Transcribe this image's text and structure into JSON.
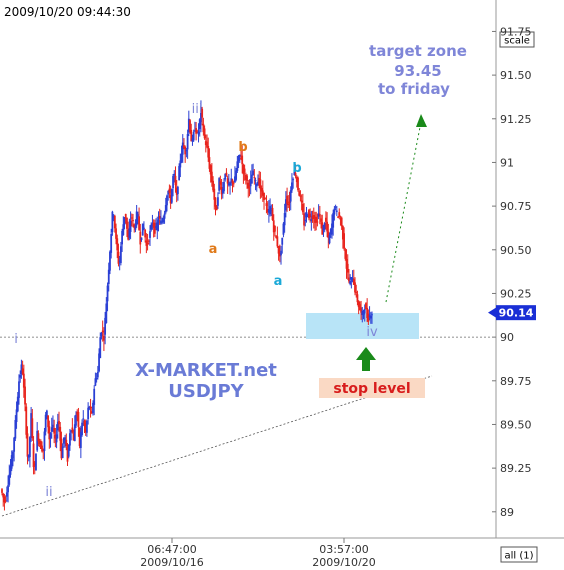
{
  "chart_data": {
    "type": "candlestick",
    "timestamp": "2009/10/20 09:44:30",
    "y_ticks": [
      "91.75",
      "91.50",
      "91.25",
      "91",
      "90.75",
      "90.50",
      "90.25",
      "90",
      "89.75",
      "89.50",
      "89.25",
      "89"
    ],
    "ylim": [
      88.85,
      91.93
    ],
    "x_ticks": [
      {
        "time": "06:47:00",
        "date": "2009/10/16"
      },
      {
        "time": "03:57:00",
        "date": "2009/10/20"
      }
    ],
    "current_price": "90.14",
    "price_path": [
      [
        0,
        89.13
      ],
      [
        4,
        89.05
      ],
      [
        8,
        89.2
      ],
      [
        12,
        89.35
      ],
      [
        15,
        89.55
      ],
      [
        18,
        89.75
      ],
      [
        21,
        89.85
      ],
      [
        24,
        89.6
      ],
      [
        27,
        89.25
      ],
      [
        30,
        89.55
      ],
      [
        33,
        89.2
      ],
      [
        36,
        89.45
      ],
      [
        39,
        89.38
      ],
      [
        42,
        89.35
      ],
      [
        45,
        89.6
      ],
      [
        48,
        89.42
      ],
      [
        51,
        89.5
      ],
      [
        54,
        89.4
      ],
      [
        57,
        89.55
      ],
      [
        60,
        89.32
      ],
      [
        63,
        89.45
      ],
      [
        66,
        89.3
      ],
      [
        69,
        89.5
      ],
      [
        72,
        89.42
      ],
      [
        75,
        89.6
      ],
      [
        78,
        89.38
      ],
      [
        81,
        89.55
      ],
      [
        84,
        89.45
      ],
      [
        87,
        89.62
      ],
      [
        90,
        89.55
      ],
      [
        93,
        89.75
      ],
      [
        96,
        89.8
      ],
      [
        99,
        90.05
      ],
      [
        102,
        90.0
      ],
      [
        105,
        90.25
      ],
      [
        108,
        90.5
      ],
      [
        111,
        90.75
      ],
      [
        114,
        90.55
      ],
      [
        117,
        90.4
      ],
      [
        120,
        90.6
      ],
      [
        123,
        90.72
      ],
      [
        126,
        90.55
      ],
      [
        129,
        90.7
      ],
      [
        132,
        90.62
      ],
      [
        135,
        90.72
      ],
      [
        138,
        90.55
      ],
      [
        141,
        90.65
      ],
      [
        144,
        90.52
      ],
      [
        147,
        90.58
      ],
      [
        150,
        90.66
      ],
      [
        153,
        90.6
      ],
      [
        156,
        90.68
      ],
      [
        159,
        90.65
      ],
      [
        162,
        90.72
      ],
      [
        165,
        90.85
      ],
      [
        168,
        90.78
      ],
      [
        171,
        90.95
      ],
      [
        174,
        90.8
      ],
      [
        177,
        91.0
      ],
      [
        180,
        91.1
      ],
      [
        183,
        91.05
      ],
      [
        186,
        91.25
      ],
      [
        189,
        91.1
      ],
      [
        192,
        91.2
      ],
      [
        195,
        91.15
      ],
      [
        198,
        91.3
      ],
      [
        201,
        91.15
      ],
      [
        204,
        91.08
      ],
      [
        207,
        90.95
      ],
      [
        210,
        90.85
      ],
      [
        213,
        90.7
      ],
      [
        216,
        90.9
      ],
      [
        219,
        90.82
      ],
      [
        222,
        90.95
      ],
      [
        225,
        90.85
      ],
      [
        228,
        90.9
      ],
      [
        231,
        90.88
      ],
      [
        234,
        91.0
      ],
      [
        237,
        91.05
      ],
      [
        240,
        90.95
      ],
      [
        243,
        90.9
      ],
      [
        246,
        90.85
      ],
      [
        249,
        90.95
      ],
      [
        252,
        90.88
      ],
      [
        255,
        90.9
      ],
      [
        258,
        90.82
      ],
      [
        261,
        90.8
      ],
      [
        264,
        90.7
      ],
      [
        267,
        90.75
      ],
      [
        270,
        90.62
      ],
      [
        273,
        90.55
      ],
      [
        276,
        90.45
      ],
      [
        279,
        90.6
      ],
      [
        282,
        90.8
      ],
      [
        285,
        90.75
      ],
      [
        288,
        90.9
      ],
      [
        291,
        90.96
      ],
      [
        294,
        90.85
      ],
      [
        297,
        90.78
      ],
      [
        300,
        90.65
      ],
      [
        303,
        90.72
      ],
      [
        306,
        90.68
      ],
      [
        309,
        90.7
      ],
      [
        312,
        90.65
      ],
      [
        315,
        90.72
      ],
      [
        318,
        90.6
      ],
      [
        321,
        90.68
      ],
      [
        324,
        90.55
      ],
      [
        327,
        90.62
      ],
      [
        330,
        90.75
      ],
      [
        333,
        90.7
      ],
      [
        336,
        90.68
      ],
      [
        339,
        90.55
      ],
      [
        342,
        90.4
      ],
      [
        345,
        90.3
      ],
      [
        348,
        90.35
      ],
      [
        351,
        90.25
      ],
      [
        354,
        90.18
      ],
      [
        357,
        90.12
      ],
      [
        360,
        90.18
      ],
      [
        363,
        90.1
      ],
      [
        366,
        90.14
      ]
    ]
  },
  "header": {
    "timestamp": "2009/10/20 09:44:30",
    "scale_button": "scale",
    "all_button": "all (1)"
  },
  "wave_labels": {
    "i": "i",
    "ii": "ii",
    "iii": "iii",
    "iv": "iv",
    "a1": "a",
    "b1": "b",
    "a2": "a",
    "b2": "b"
  },
  "annotations": {
    "target_line1": "target zone",
    "target_line2": "93.45",
    "target_line3": "to friday",
    "watermark_line1": "X-MARKET.net",
    "watermark_line2": "USDJPY",
    "stop_label": "stop level"
  },
  "colors": {
    "candle_up": "#2a3fd4",
    "candle_down": "#e8231c",
    "wave_label": "#7f86d8",
    "label_orange": "#e07a1a",
    "label_cyan": "#1aa9d8",
    "target_text": "#7f86d8",
    "watermark": "#6a7bd6",
    "zone_fill": "#b8e4f7",
    "stop_fill": "#fad9c4",
    "stop_text": "#d81c1c",
    "arrow_green": "#1a8a1a",
    "price_tag": "#1a2fd6"
  }
}
